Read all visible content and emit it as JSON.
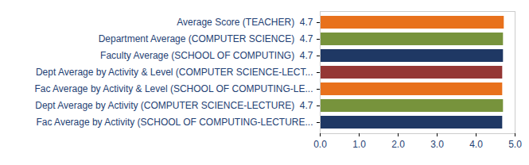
{
  "chart_data": {
    "type": "bar",
    "orientation": "horizontal",
    "categories": [
      "Average Score (TEACHER)  4.7",
      "Department Average (COMPUTER SCIENCE)  4.7",
      "Faculty Average (SCHOOL OF COMPUTING)  4.7",
      "Dept Average by Activity & Level (COMPUTER SCIENCE-LECT...",
      "Fac Average by Activity & Level (SCHOOL OF COMPUTING-LE...",
      "Dept Average by Activity (COMPUTER SCIENCE-LECTURE)  4.7",
      "Fac Average by Activity (SCHOOL OF COMPUTING-LECTURE..."
    ],
    "values": [
      4.72,
      4.7,
      4.7,
      4.68,
      4.68,
      4.7,
      4.68
    ],
    "colors": [
      "#e8711c",
      "#77933c",
      "#1f3864",
      "#953735",
      "#e8711c",
      "#77933c",
      "#1f3864"
    ],
    "xlim": [
      0,
      5
    ],
    "xticks": [
      {
        "value": 0,
        "label": "0.0"
      },
      {
        "value": 1,
        "label": "1.0"
      },
      {
        "value": 2,
        "label": "2.0"
      },
      {
        "value": 3,
        "label": "3.0"
      },
      {
        "value": 4,
        "label": "4.0"
      },
      {
        "value": 5,
        "label": "5.0"
      }
    ],
    "grid": false
  }
}
